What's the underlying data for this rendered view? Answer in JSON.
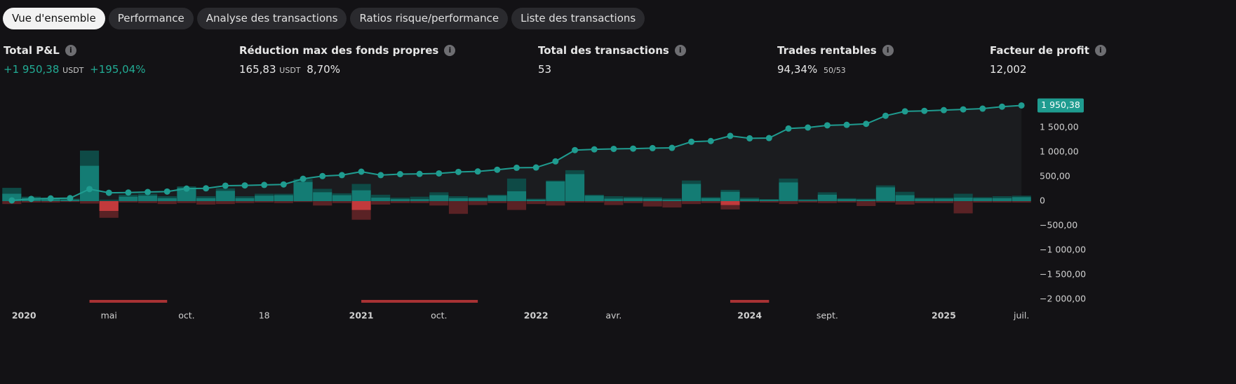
{
  "tabs": [
    "Vue d'ensemble",
    "Performance",
    "Analyse des transactions",
    "Ratios risque/performance",
    "Liste des transactions"
  ],
  "stats": [
    {
      "label": "Total P&L",
      "value": "+1 950,38",
      "unit": "USDT",
      "extra": "+195,04%"
    },
    {
      "label": "Réduction max des fonds propres",
      "value": "165,83",
      "unit": "USDT",
      "extra": "8,70%"
    },
    {
      "label": "Total des transactions",
      "value": "53"
    },
    {
      "label": "Trades rentables",
      "value": "94,34%",
      "extra": "50/53"
    },
    {
      "label": "Facteur de profit",
      "value": "12,002"
    }
  ],
  "chart_data": {
    "type": "line",
    "equity": {
      "color": "#1f9c90",
      "values": [
        15,
        45,
        55,
        60,
        245,
        170,
        175,
        185,
        195,
        255,
        260,
        315,
        320,
        330,
        340,
        455,
        510,
        530,
        600,
        530,
        550,
        555,
        565,
        595,
        605,
        640,
        680,
        685,
        810,
        1040,
        1055,
        1065,
        1070,
        1080,
        1085,
        1210,
        1225,
        1330,
        1280,
        1285,
        1480,
        1500,
        1545,
        1555,
        1575,
        1740,
        1830,
        1840,
        1855,
        1870,
        1885,
        1925,
        1950.38
      ]
    },
    "end_label": "1 950,38",
    "series": [
      {
        "color": "#0e4a46",
        "values": [
          270,
          90,
          70,
          50,
          1030,
          30,
          130,
          150,
          100,
          300,
          100,
          260,
          100,
          150,
          150,
          450,
          250,
          160,
          350,
          130,
          70,
          90,
          180,
          100,
          80,
          130,
          460,
          50,
          420,
          630,
          130,
          100,
          90,
          80,
          60,
          420,
          80,
          230,
          70,
          40,
          460,
          40,
          180,
          60,
          50,
          320,
          190,
          70,
          70,
          150,
          80,
          100,
          110
        ]
      },
      {
        "color": "#147c74",
        "values": [
          150,
          60,
          40,
          30,
          720,
          0,
          90,
          110,
          60,
          270,
          60,
          210,
          60,
          110,
          120,
          390,
          180,
          120,
          220,
          70,
          40,
          40,
          120,
          60,
          60,
          110,
          200,
          30,
          400,
          550,
          110,
          50,
          60,
          50,
          30,
          350,
          60,
          190,
          40,
          30,
          380,
          20,
          130,
          40,
          30,
          280,
          120,
          50,
          50,
          70,
          60,
          60,
          80
        ]
      },
      {
        "color": "#5a2225",
        "values": [
          -60,
          -30,
          -30,
          -20,
          -50,
          -340,
          -30,
          -40,
          -60,
          -40,
          -70,
          -60,
          -40,
          -30,
          -40,
          -20,
          -90,
          -40,
          -380,
          -70,
          -40,
          -40,
          -90,
          -260,
          -80,
          -40,
          -180,
          -60,
          -90,
          -30,
          -30,
          -80,
          -40,
          -110,
          -130,
          -60,
          -40,
          -170,
          -20,
          -30,
          -60,
          -30,
          -40,
          -30,
          -100,
          -30,
          -70,
          -40,
          -40,
          -250,
          -30,
          -30,
          -30
        ]
      },
      {
        "color": "#c23a3c",
        "values": [
          0,
          0,
          0,
          0,
          0,
          -200,
          0,
          0,
          0,
          0,
          0,
          0,
          0,
          0,
          0,
          0,
          0,
          0,
          -180,
          0,
          0,
          0,
          0,
          0,
          0,
          0,
          0,
          0,
          0,
          0,
          0,
          0,
          0,
          0,
          0,
          0,
          0,
          -80,
          0,
          0,
          0,
          0,
          0,
          0,
          0,
          0,
          0,
          0,
          0,
          0,
          0,
          0,
          0
        ]
      }
    ],
    "drawdown_periods": [
      [
        4,
        8
      ],
      [
        18,
        24
      ],
      [
        37,
        39
      ]
    ],
    "drawdown_color": "#a83234",
    "xlim": [
      -0.5,
      52.5
    ],
    "xticks": [
      {
        "value": 0,
        "label": "2020"
      },
      {
        "value": 5,
        "label": "mai"
      },
      {
        "value": 9,
        "label": "oct."
      },
      {
        "value": 13,
        "label": "18"
      },
      {
        "value": 18,
        "label": "2021"
      },
      {
        "value": 22,
        "label": "oct."
      },
      {
        "value": 27,
        "label": "2022"
      },
      {
        "value": 31,
        "label": "avr."
      },
      {
        "value": 38,
        "label": "2024"
      },
      {
        "value": 42,
        "label": "sept."
      },
      {
        "value": 48,
        "label": "2025"
      },
      {
        "value": 52,
        "label": "juil."
      }
    ],
    "ylim": [
      -2200,
      2100
    ],
    "yticks": [
      {
        "value": -2000,
        "label": "−2 000,00"
      },
      {
        "value": -1500,
        "label": "−1 500,00"
      },
      {
        "value": -1000,
        "label": "−1 000,00"
      },
      {
        "value": -500,
        "label": "−500,00"
      },
      0,
      {
        "value": 500,
        "label": "500,00"
      },
      {
        "value": 1000,
        "label": "1 000,00"
      },
      {
        "value": 1500,
        "label": "1 500,00"
      }
    ]
  }
}
